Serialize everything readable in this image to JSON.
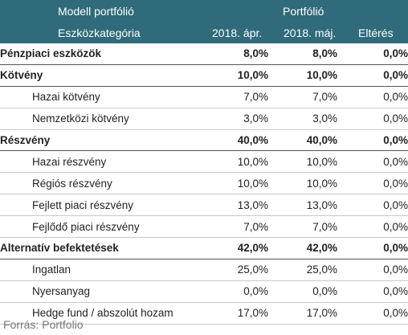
{
  "header": {
    "model_title": "Modell portfólió",
    "portfolio_title": "Portfólió",
    "category_label": "Eszközkategória",
    "col1": "2018. ápr.",
    "col2": "2018. máj.",
    "col3": "Eltérés"
  },
  "rows": [
    {
      "label": "Pénzpiaci eszközök",
      "v1": "8,0%",
      "v2": "8,0%",
      "v3": "0,0%"
    },
    {
      "label": "Kötvény",
      "v1": "10,0%",
      "v2": "10,0%",
      "v3": "0,0%"
    },
    {
      "label": "Hazai kötvény",
      "v1": "7,0%",
      "v2": "7,0%",
      "v3": "0,0%"
    },
    {
      "label": "Nemzetközi kötvény",
      "v1": "3,0%",
      "v2": "3,0%",
      "v3": "0,0%"
    },
    {
      "label": "Részvény",
      "v1": "40,0%",
      "v2": "40,0%",
      "v3": "0,0%"
    },
    {
      "label": "Hazai részvény",
      "v1": "10,0%",
      "v2": "10,0%",
      "v3": "0,0%"
    },
    {
      "label": "Régiós részvény",
      "v1": "10,0%",
      "v2": "10,0%",
      "v3": "0,0%"
    },
    {
      "label": "Fejlett piaci részvény",
      "v1": "13,0%",
      "v2": "13,0%",
      "v3": "0,0%"
    },
    {
      "label": "Fejlődő piaci részvény",
      "v1": "7,0%",
      "v2": "7,0%",
      "v3": "0,0%"
    },
    {
      "label": "Alternatív befektetések",
      "v1": "42,0%",
      "v2": "42,0%",
      "v3": "0,0%"
    },
    {
      "label": "Ingatlan",
      "v1": "25,0%",
      "v2": "25,0%",
      "v3": "0,0%"
    },
    {
      "label": "Nyersanyag",
      "v1": "0,0%",
      "v2": "0,0%",
      "v3": "0,0%"
    },
    {
      "label": "Hedge fund / abszolút hozam",
      "v1": "17,0%",
      "v2": "17,0%",
      "v3": "0,0%"
    }
  ],
  "source": "Forrás: Portfolio",
  "colors": {
    "header_bg": "#2f6b7a",
    "header_text": "#ffffff"
  }
}
